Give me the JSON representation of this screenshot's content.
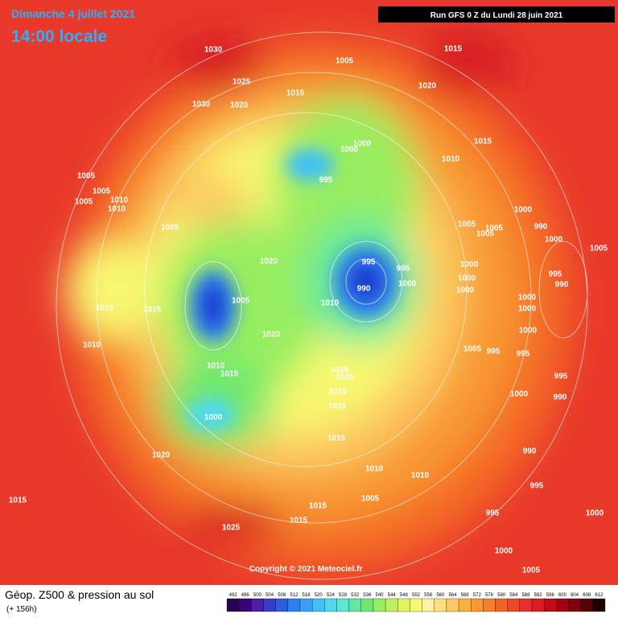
{
  "header": {
    "title": "Dimanche 4 juillet 2021",
    "time": "14:00 locale",
    "run": "Run GFS 0 Z du Lundi 28 juin 2021"
  },
  "copyright": "Copyright © 2021 Meteociel.fr",
  "footer": {
    "title": "Géop. Z500 & pression au sol",
    "lead": "(+ 156h)"
  },
  "isobar_labels": [
    "1030",
    "1005",
    "1015",
    "1025",
    "1015",
    "1020",
    "1030",
    "1020",
    "1015",
    "1000",
    "1000",
    "1010",
    "995",
    "1005",
    "1005",
    "1005",
    "1010",
    "1010",
    "1005",
    "1005",
    "1005",
    "1005",
    "1000",
    "990",
    "1000",
    "995",
    "995",
    "1020",
    "1000",
    "995",
    "1005",
    "990",
    "1000",
    "1000",
    "990",
    "1005",
    "1010",
    "1000",
    "1000",
    "1010",
    "1015",
    "1000",
    "1000",
    "1020",
    "1010",
    "1005",
    "995",
    "995",
    "1010",
    "1015",
    "1025",
    "1020",
    "1010",
    "1000",
    "990",
    "995",
    "1015",
    "1000",
    "1015",
    "1020",
    "990",
    "1010",
    "1010",
    "995",
    "1015",
    "1005",
    "1015",
    "1015",
    "1025",
    "995",
    "1000",
    "1000",
    "1005"
  ],
  "legend": {
    "values": [
      492,
      496,
      500,
      504,
      508,
      512,
      516,
      520,
      524,
      528,
      532,
      536,
      540,
      544,
      548,
      552,
      556,
      560,
      564,
      568,
      572,
      576,
      580,
      584,
      588,
      592,
      596,
      600,
      604,
      608,
      612
    ],
    "colors": [
      "#2a0050",
      "#3c0078",
      "#4b1fa0",
      "#3a3ac8",
      "#2d5ae0",
      "#2f7ff0",
      "#3aa0f5",
      "#40c0f8",
      "#50d8f0",
      "#5ee8d0",
      "#60e8a0",
      "#70e870",
      "#98ee60",
      "#c0f060",
      "#e0f460",
      "#f8f870",
      "#fff0a0",
      "#fce080",
      "#fcc860",
      "#fab040",
      "#f89830",
      "#f48028",
      "#f06428",
      "#ec4a28",
      "#e8302a",
      "#d81c20",
      "#c00c18",
      "#a00010",
      "#800010",
      "#580008",
      "#200000"
    ]
  }
}
